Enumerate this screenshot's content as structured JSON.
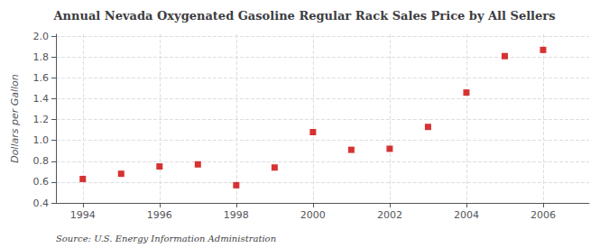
{
  "chart_data": {
    "type": "scatter",
    "title": "Annual Nevada Oxygenated Gasoline Regular Rack Sales Price by All Sellers",
    "ylabel": "Dollars per Gallon",
    "annotation": "Source: U.S. Energy Information Administration",
    "x": [
      1994,
      1995,
      1996,
      1997,
      1998,
      1999,
      2000,
      2001,
      2002,
      2003,
      2004,
      2005,
      2006
    ],
    "values": [
      0.63,
      0.68,
      0.75,
      0.77,
      0.57,
      0.74,
      1.08,
      0.91,
      0.92,
      1.13,
      1.46,
      1.81,
      1.87
    ],
    "color": "#cc0000",
    "marker": "square",
    "xlim": [
      1993.3,
      2007.2
    ],
    "xticks": [
      1994,
      1996,
      1998,
      2000,
      2002,
      2004,
      2006
    ],
    "ylim": [
      0.4,
      2.02
    ],
    "yticks": [
      0.4,
      0.6,
      0.8,
      {
        "value": 1.0,
        "label": "1.0"
      },
      1.2,
      1.4,
      1.6,
      1.8,
      {
        "value": 2.0,
        "label": "2.0"
      }
    ],
    "grid": true
  }
}
